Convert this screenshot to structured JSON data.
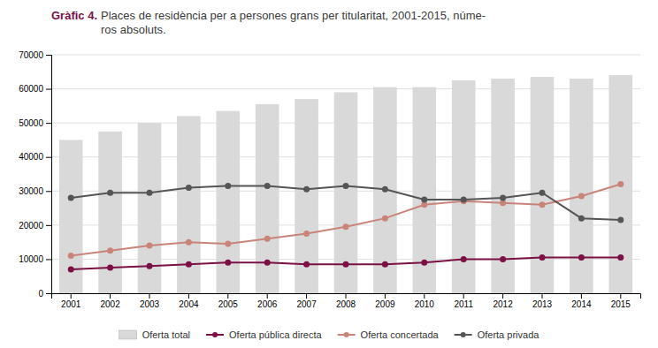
{
  "chart_data": {
    "type": "bar",
    "title": "Gràfic 4.",
    "subtitle": "Places de residència per a persones grans per titularitat, 2001-2015, núme-\nros absoluts.",
    "categories": [
      "2001",
      "2002",
      "2003",
      "2004",
      "2005",
      "2006",
      "2007",
      "2008",
      "2009",
      "2010",
      "2011",
      "2012",
      "2013",
      "2014",
      "2015"
    ],
    "series": [
      {
        "name": "Oferta total",
        "type": "bar",
        "color": "#d9d9d9",
        "values": [
          45000,
          47500,
          50000,
          52000,
          53500,
          55500,
          57000,
          59000,
          60500,
          60500,
          62500,
          63000,
          63500,
          63000,
          64000
        ]
      },
      {
        "name": "Oferta pública directa",
        "type": "line",
        "color": "#7b1045",
        "marker": "circle",
        "values": [
          7000,
          7500,
          8000,
          8500,
          9000,
          9000,
          8500,
          8500,
          8500,
          9000,
          10000,
          10000,
          10500,
          10500,
          10500
        ]
      },
      {
        "name": "Oferta concertada",
        "type": "line",
        "color": "#c9847a",
        "marker": "circle",
        "values": [
          11000,
          12500,
          14000,
          15000,
          14500,
          16000,
          17500,
          19500,
          22000,
          26000,
          27000,
          26500,
          26000,
          28500,
          32000
        ]
      },
      {
        "name": "Oferta privada",
        "type": "line",
        "color": "#555555",
        "marker": "circle",
        "values": [
          28000,
          29500,
          29500,
          31000,
          31500,
          31500,
          30500,
          31500,
          30500,
          27500,
          27500,
          28000,
          29500,
          22000,
          21500
        ]
      }
    ],
    "ylim": [
      0,
      70000
    ],
    "yticks": [
      0,
      10000,
      20000,
      30000,
      40000,
      50000,
      60000,
      70000
    ],
    "grid": true,
    "legend": "bottom"
  }
}
